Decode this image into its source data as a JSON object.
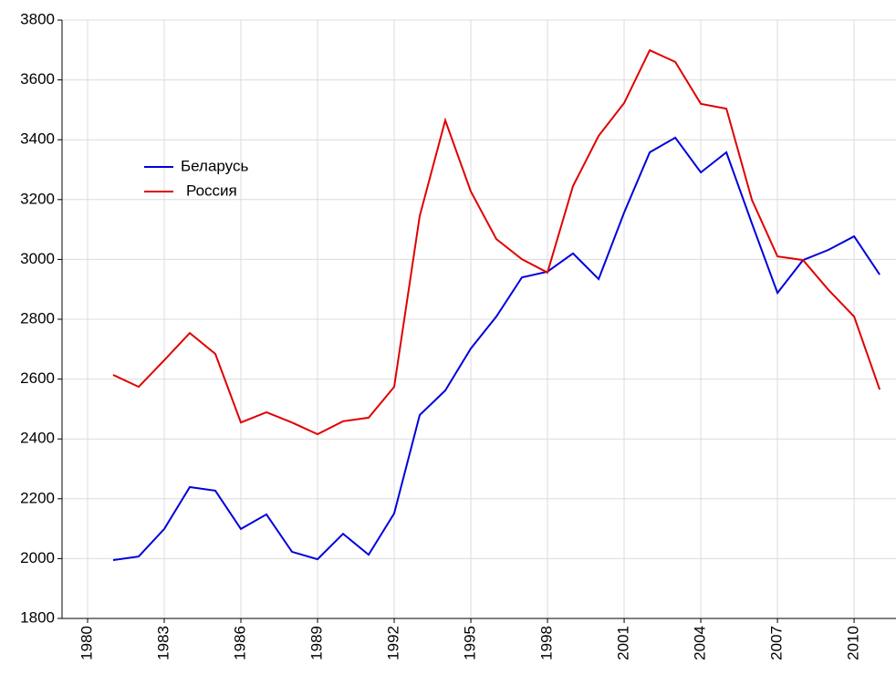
{
  "chart_data": {
    "type": "line",
    "x": [
      1981,
      1982,
      1983,
      1984,
      1985,
      1986,
      1987,
      1988,
      1989,
      1990,
      1991,
      1992,
      1993,
      1994,
      1995,
      1996,
      1997,
      1998,
      1999,
      2000,
      2001,
      2002,
      2003,
      2004,
      2005,
      2006,
      2007,
      2008,
      2009,
      2010,
      2011
    ],
    "series": [
      {
        "name": "Беларусь",
        "color": "#0000dd",
        "values": [
          1995,
          2007,
          2099,
          2239,
          2227,
          2099,
          2148,
          2023,
          1998,
          2083,
          2013,
          2151,
          2480,
          2562,
          2702,
          2809,
          2940,
          2959,
          3020,
          2934,
          3157,
          3358,
          3407,
          3291,
          3358,
          3120,
          2888,
          2998,
          3032,
          3077,
          2949
        ]
      },
      {
        "name": "Россия",
        "color": "#e00000",
        "values": [
          2614,
          2574,
          2663,
          2754,
          2684,
          2455,
          2489,
          2455,
          2416,
          2459,
          2471,
          2574,
          3145,
          3465,
          3227,
          3068,
          3001,
          2956,
          3245,
          3413,
          3523,
          3699,
          3660,
          3520,
          3504,
          3199,
          3010,
          2998,
          2898,
          2809,
          2565
        ]
      }
    ],
    "xlim": [
      1979,
      2011.64
    ],
    "xticks": [
      1980,
      1983,
      1986,
      1989,
      1992,
      1995,
      1998,
      2001,
      2004,
      2007,
      2010
    ],
    "ylim": [
      1800,
      3800
    ],
    "yticks": [
      1800,
      2000,
      2200,
      2400,
      2600,
      2800,
      3000,
      3200,
      3400,
      3600,
      3800
    ],
    "grid": true,
    "legend": "upper left"
  }
}
